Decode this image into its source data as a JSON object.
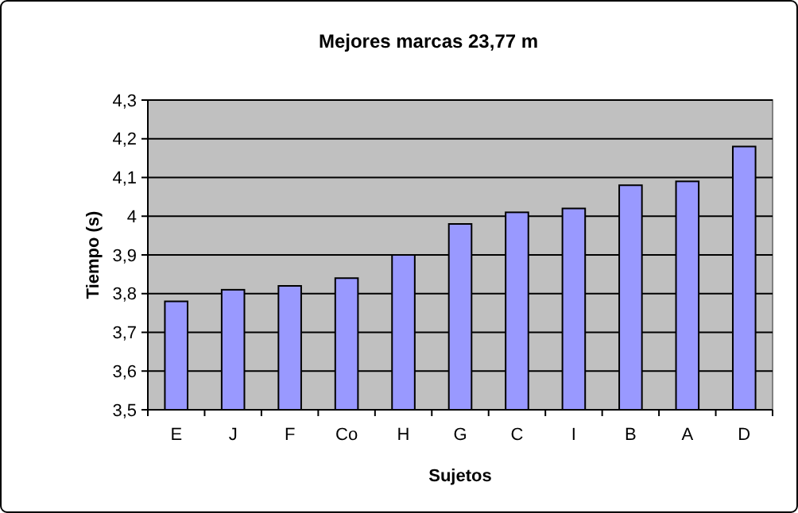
{
  "chart_data": {
    "type": "bar",
    "title": "Mejores marcas 23,77 m",
    "xlabel": "Sujetos",
    "ylabel": "Tiempo (s)",
    "categories": [
      "E",
      "J",
      "F",
      "Co",
      "H",
      "G",
      "C",
      "I",
      "B",
      "A",
      "D"
    ],
    "values": [
      3.78,
      3.81,
      3.82,
      3.84,
      3.9,
      3.98,
      4.01,
      4.02,
      4.08,
      4.09,
      4.18
    ],
    "color": "#9999ff",
    "ylim": [
      3.5,
      4.3
    ],
    "yticks": [
      {
        "value": 3.5,
        "label": "3,5"
      },
      {
        "value": 3.6,
        "label": "3,6"
      },
      {
        "value": 3.7,
        "label": "3,7"
      },
      {
        "value": 3.8,
        "label": "3,8"
      },
      {
        "value": 3.9,
        "label": "3,9"
      },
      {
        "value": 4,
        "label": "4"
      },
      {
        "value": 4.1,
        "label": "4,1"
      },
      {
        "value": 4.2,
        "label": "4,2"
      },
      {
        "value": 4.3,
        "label": "4,3"
      }
    ],
    "grid": "y"
  }
}
